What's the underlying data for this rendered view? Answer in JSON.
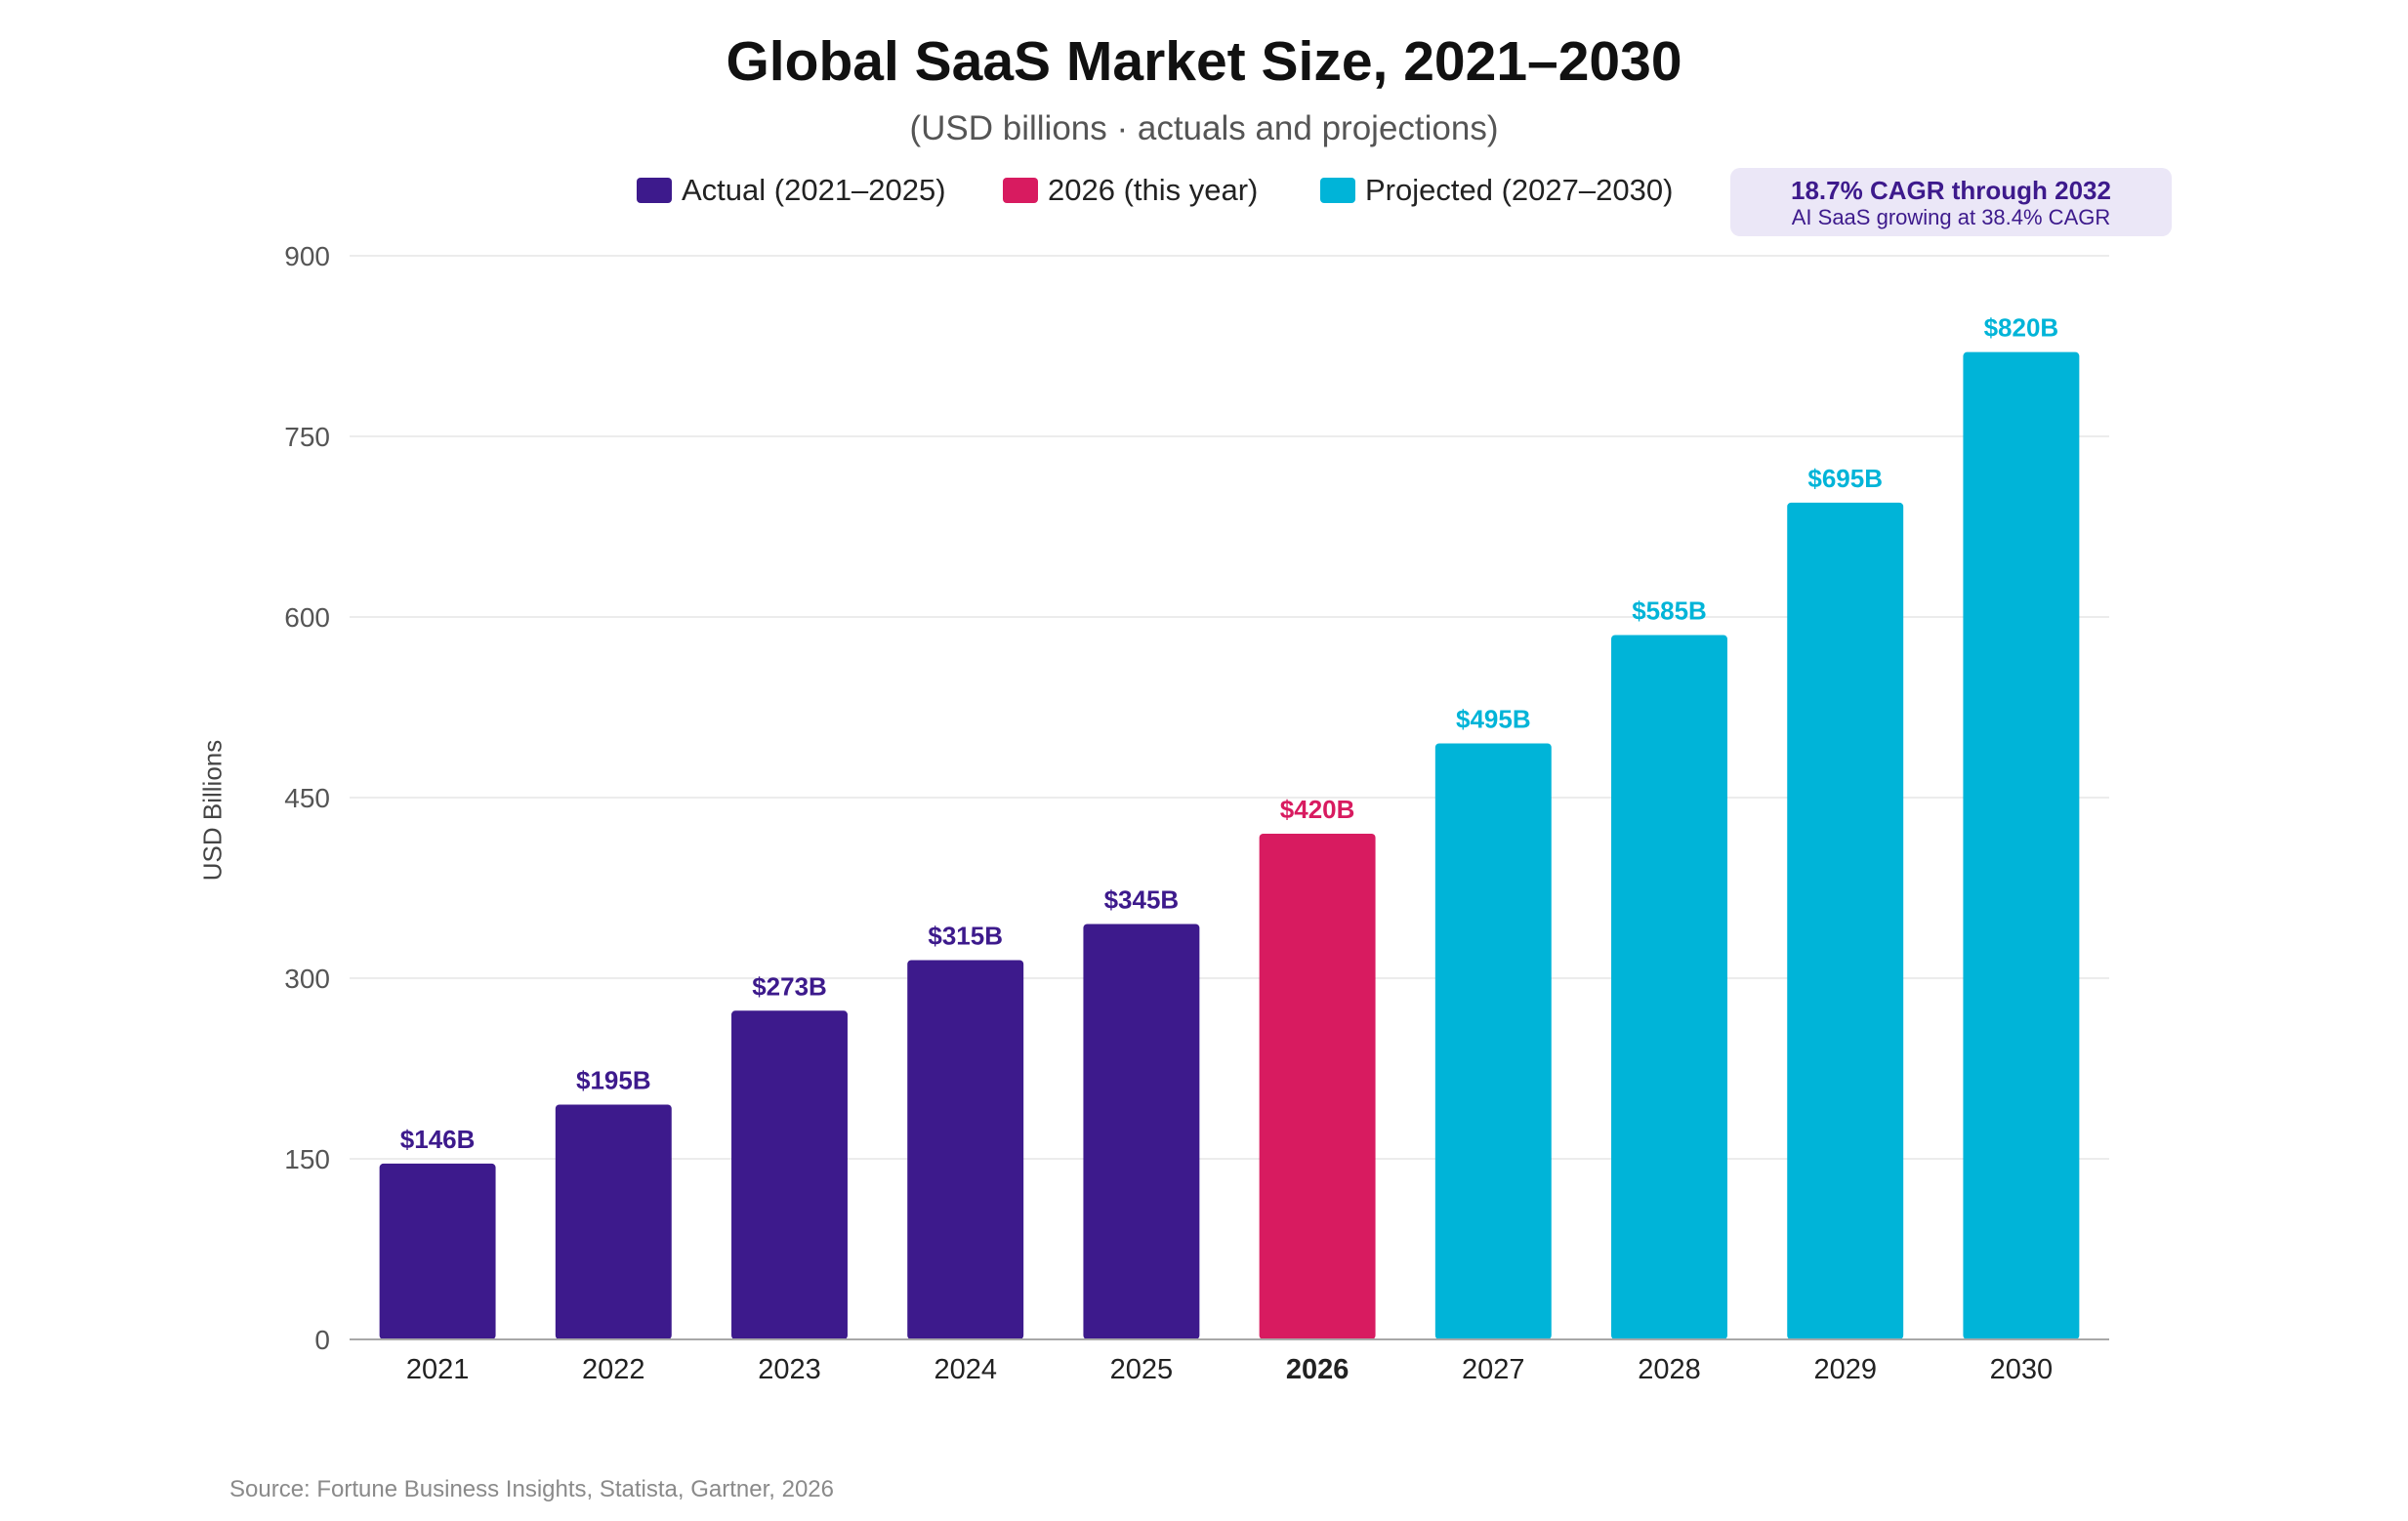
{
  "chart_data": {
    "type": "bar",
    "title": "Global SaaS Market Size, 2021–2030",
    "subtitle": "(USD billions · actuals and projections)",
    "ylabel": "USD Billions",
    "xlabel": "",
    "ylim": [
      0,
      900
    ],
    "yticks": [
      0,
      150,
      300,
      450,
      600,
      750,
      900
    ],
    "grid": true,
    "categories": [
      "2021",
      "2022",
      "2023",
      "2024",
      "2025",
      "2026",
      "2027",
      "2028",
      "2029",
      "2030"
    ],
    "values": [
      146,
      195,
      273,
      315,
      345,
      420,
      495,
      585,
      695,
      820
    ],
    "data_labels": [
      "$146B",
      "$195B",
      "$273B",
      "$315B",
      "$345B",
      "$420B",
      "$495B",
      "$585B",
      "$695B",
      "$820B"
    ],
    "bar_groups": [
      "actual",
      "actual",
      "actual",
      "actual",
      "actual",
      "current",
      "projected",
      "projected",
      "projected",
      "projected"
    ],
    "highlighted_category": "2026",
    "legend": [
      {
        "key": "actual",
        "label": "Actual (2021–2025)",
        "color": "#3d1a8c"
      },
      {
        "key": "current",
        "label": "2026 (this year)",
        "color": "#d81b60"
      },
      {
        "key": "projected",
        "label": "Projected (2027–2030)",
        "color": "#00b4d8"
      }
    ],
    "legend_position": "top-center",
    "annotation": {
      "main": "18.7% CAGR through 2032",
      "sub": "AI SaaS growing at 38.4% CAGR"
    },
    "source": "Source: Fortune Business Insights, Statista, Gartner, 2026"
  }
}
